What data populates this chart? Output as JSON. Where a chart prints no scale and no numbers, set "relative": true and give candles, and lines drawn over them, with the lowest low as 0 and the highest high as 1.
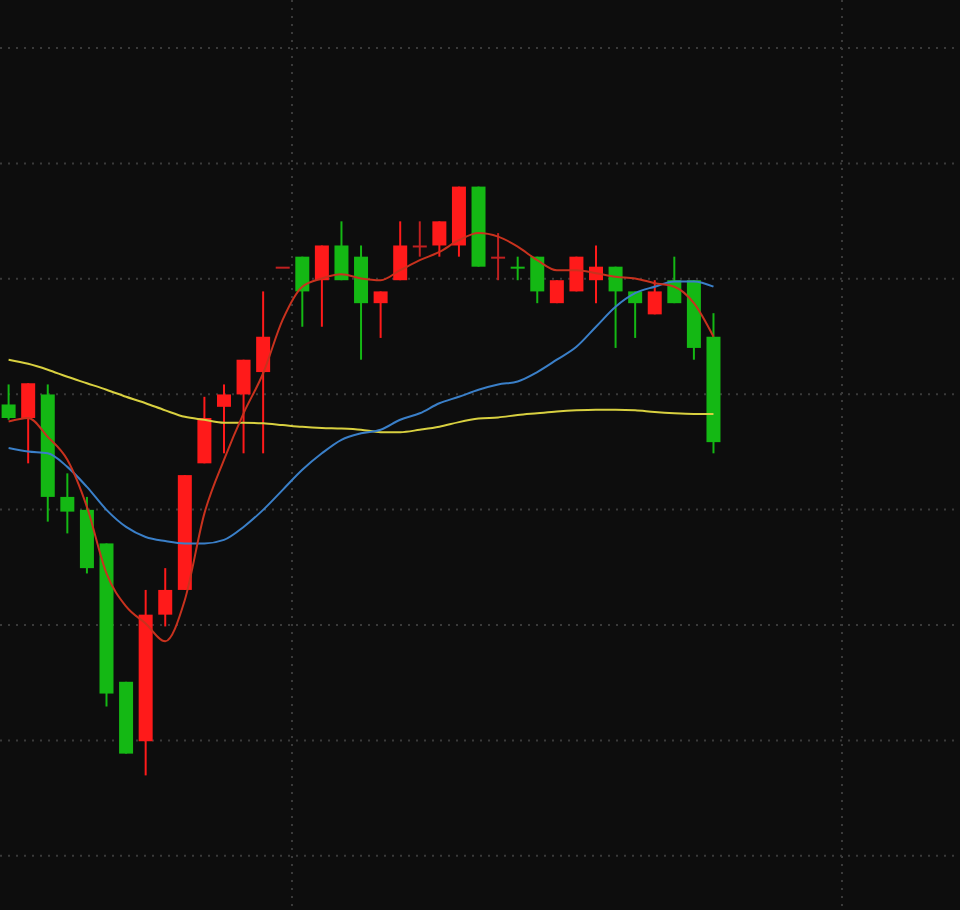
{
  "chart_data": {
    "type": "candlestick",
    "relative": true,
    "grid": true,
    "categories": [
      null,
      null,
      null,
      null,
      null,
      null,
      null,
      null,
      null,
      null,
      null,
      null,
      null,
      null,
      null,
      null,
      null,
      null,
      null,
      null,
      null,
      null,
      null,
      null,
      null,
      null,
      null,
      null,
      null,
      null,
      null,
      null,
      null,
      null,
      null,
      null,
      null
    ],
    "ohlc": [
      [
        0.63,
        0.664,
        0.604,
        0.607
      ],
      [
        0.607,
        0.666,
        0.53,
        0.666
      ],
      [
        0.647,
        0.664,
        0.431,
        0.473
      ],
      [
        0.473,
        0.513,
        0.411,
        0.448
      ],
      [
        0.451,
        0.473,
        0.343,
        0.352
      ],
      [
        0.394,
        0.394,
        0.117,
        0.139
      ],
      [
        0.159,
        0.159,
        0.037,
        0.037
      ],
      [
        0.058,
        0.315,
        0,
        0.273
      ],
      [
        0.273,
        0.352,
        0.253,
        0.315
      ],
      [
        0.315,
        0.51,
        0.315,
        0.51
      ],
      [
        0.53,
        0.643,
        0.53,
        0.607
      ],
      [
        0.626,
        0.664,
        0.547,
        0.647
      ],
      [
        0.647,
        0.706,
        0.547,
        0.706
      ],
      [
        0.685,
        0.822,
        0.547,
        0.745
      ],
      [
        0.864,
        0.864,
        0.864,
        0.864
      ],
      [
        0.881,
        0.881,
        0.762,
        0.822
      ],
      [
        0.841,
        0.9,
        0.762,
        0.9
      ],
      [
        0.9,
        0.941,
        0.841,
        0.841
      ],
      [
        0.881,
        0.9,
        0.706,
        0.802
      ],
      [
        0.802,
        0.822,
        0.743,
        0.822
      ],
      [
        0.841,
        0.941,
        0.841,
        0.9
      ],
      [
        0.9,
        0.941,
        0.881,
        0.9
      ],
      [
        0.9,
        0.941,
        0.881,
        0.941
      ],
      [
        0.9,
        1,
        0.881,
        1
      ],
      [
        1,
        1,
        0.864,
        0.864
      ],
      [
        0.881,
        0.921,
        0.841,
        0.881
      ],
      [
        0.864,
        0.881,
        0.841,
        0.864
      ],
      [
        0.881,
        0.881,
        0.802,
        0.822
      ],
      [
        0.802,
        0.841,
        0.802,
        0.841
      ],
      [
        0.822,
        0.881,
        0.822,
        0.881
      ],
      [
        0.841,
        0.9,
        0.802,
        0.864
      ],
      [
        0.864,
        0.864,
        0.726,
        0.822
      ],
      [
        0.822,
        0.822,
        0.743,
        0.802
      ],
      [
        0.783,
        0.841,
        0.783,
        0.822
      ],
      [
        0.841,
        0.881,
        0.802,
        0.802
      ],
      [
        0.841,
        0.841,
        0.706,
        0.726
      ],
      [
        0.745,
        0.785,
        0.547,
        0.566
      ]
    ],
    "colors": [
      "#14b814",
      "#ff1a1a",
      "#14b814",
      "#14b814",
      "#14b814",
      "#14b814",
      "#14b814",
      "#ff1a1a",
      "#ff1a1a",
      "#ff1a1a",
      "#ff1a1a",
      "#ff1a1a",
      "#ff1a1a",
      "#ff1a1a",
      "#c02020",
      "#14b814",
      "#ff1a1a",
      "#14b814",
      "#14b814",
      "#ff1a1a",
      "#ff1a1a",
      "#c02020",
      "#ff1a1a",
      "#ff1a1a",
      "#14b814",
      "#c02020",
      "#14b814",
      "#14b814",
      "#ff1a1a",
      "#ff1a1a",
      "#ff1a1a",
      "#14b814",
      "#14b814",
      "#ff1a1a",
      "#14b814",
      "#14b814",
      "#14b814"
    ],
    "series": [
      {
        "type": "line",
        "color": "#d8d040",
        "values": [
          0.706,
          0.699,
          0.689,
          0.677,
          0.666,
          0.655,
          0.643,
          0.632,
          0.62,
          0.609,
          0.604,
          0.599,
          0.599,
          0.598,
          0.595,
          0.592,
          0.59,
          0.589,
          0.587,
          0.583,
          0.583,
          0.587,
          0.592,
          0.6,
          0.606,
          0.608,
          0.612,
          0.615,
          0.618,
          0.62,
          0.621,
          0.621,
          0.62,
          0.617,
          0.615,
          0.614,
          0.614
        ]
      },
      {
        "type": "line",
        "color": "#3a7fc8",
        "values": [
          0.556,
          0.55,
          0.547,
          0.524,
          0.49,
          0.451,
          0.422,
          0.405,
          0.398,
          0.394,
          0.394,
          0.4,
          0.422,
          0.451,
          0.485,
          0.519,
          0.547,
          0.57,
          0.581,
          0.587,
          0.604,
          0.615,
          0.632,
          0.643,
          0.655,
          0.664,
          0.669,
          0.685,
          0.706,
          0.728,
          0.762,
          0.796,
          0.819,
          0.83,
          0.839,
          0.839,
          0.83
        ]
      },
      {
        "type": "line",
        "color": "#c8321e",
        "values": [
          0.601,
          0.607,
          0.575,
          0.536,
          0.456,
          0.343,
          0.287,
          0.258,
          0.228,
          0.298,
          0.445,
          0.536,
          0.615,
          0.683,
          0.774,
          0.83,
          0.844,
          0.851,
          0.844,
          0.841,
          0.858,
          0.875,
          0.889,
          0.909,
          0.921,
          0.915,
          0.898,
          0.875,
          0.858,
          0.858,
          0.853,
          0.847,
          0.844,
          0.836,
          0.83,
          0.802,
          0.745
        ]
      }
    ]
  }
}
